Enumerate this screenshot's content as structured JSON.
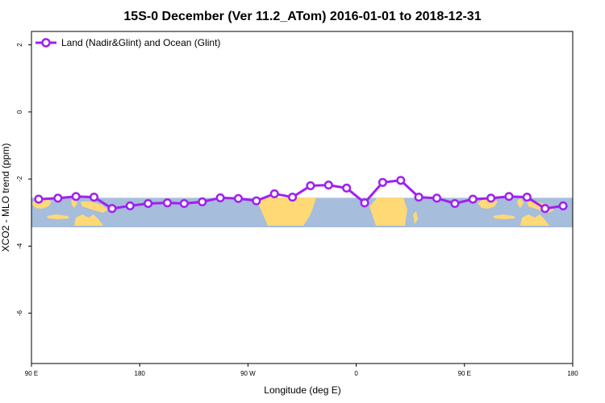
{
  "chart_data": {
    "type": "line",
    "title": "15S-0 December (Ver 11.2_ATom)   2016-01-01 to 2018-12-31",
    "xlabel": "Longitude (deg E)",
    "ylabel": "XCO2 - MLO trend (ppm)",
    "xlim": [
      90,
      540
    ],
    "ylim": [
      -7.5,
      2.4
    ],
    "x_ticks": [
      {
        "value": 90,
        "label": "90 E"
      },
      {
        "value": 180,
        "label": "180"
      },
      {
        "value": 270,
        "label": "90 W"
      },
      {
        "value": 360,
        "label": "0"
      },
      {
        "value": 450,
        "label": "90 E"
      },
      {
        "value": 540,
        "label": "180"
      }
    ],
    "y_ticks": [
      {
        "value": 2,
        "label": "2"
      },
      {
        "value": 0,
        "label": "0"
      },
      {
        "value": -2,
        "label": "-2"
      },
      {
        "value": -4,
        "label": "-4"
      },
      {
        "value": -6,
        "label": "-6"
      }
    ],
    "map_band": {
      "lat_range": [
        -15,
        0
      ],
      "y_range": [
        -3.44,
        -2.56
      ],
      "ocean_color": "#a6bddb",
      "land_color": "#fed976"
    },
    "legend": {
      "position": "top-left"
    },
    "series": [
      {
        "name": "Land (Nadir&Glint) and Ocean (Glint)",
        "color": "#a020f0",
        "x": [
          96,
          112,
          127,
          142,
          157,
          172,
          187,
          203,
          217,
          232,
          247,
          262,
          277,
          292,
          307,
          322,
          337,
          352,
          367,
          382,
          397,
          412,
          427,
          442,
          457,
          472,
          487,
          502,
          517,
          532
        ],
        "y": [
          -2.6,
          -2.57,
          -2.52,
          -2.54,
          -2.88,
          -2.8,
          -2.73,
          -2.71,
          -2.73,
          -2.68,
          -2.56,
          -2.58,
          -2.65,
          -2.44,
          -2.54,
          -2.2,
          -2.18,
          -2.27,
          -2.71,
          -2.1,
          -2.04,
          -2.54,
          -2.57,
          -2.73,
          -2.6,
          -2.57,
          -2.52,
          -2.54,
          -2.88,
          -2.8
        ]
      }
    ]
  }
}
